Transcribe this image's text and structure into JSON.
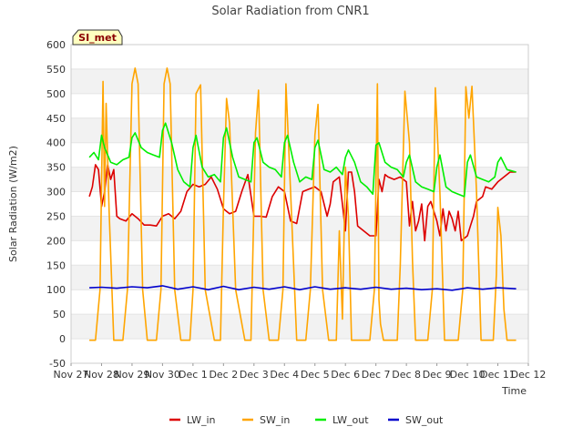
{
  "chart_data": {
    "type": "line",
    "title": "Solar Radiation from CNR1",
    "xlabel": "Time",
    "ylabel": "Solar Radiation (W/m2)",
    "station_badge": "SI_met",
    "ylim": [
      -50,
      600
    ],
    "xlim": [
      0,
      15
    ],
    "y_ticks": [
      -50,
      0,
      50,
      100,
      150,
      200,
      250,
      300,
      350,
      400,
      450,
      500,
      550,
      600
    ],
    "x_ticks": [
      {
        "pos": 0,
        "label": "Nov 27"
      },
      {
        "pos": 1,
        "label": "Nov 28"
      },
      {
        "pos": 2,
        "label": "Nov 29"
      },
      {
        "pos": 3,
        "label": "Nov 30"
      },
      {
        "pos": 4,
        "label": "Dec 1"
      },
      {
        "pos": 5,
        "label": "Dec 2"
      },
      {
        "pos": 6,
        "label": "Dec 3"
      },
      {
        "pos": 7,
        "label": "Dec 4"
      },
      {
        "pos": 8,
        "label": "Dec 5"
      },
      {
        "pos": 9,
        "label": "Dec 6"
      },
      {
        "pos": 10,
        "label": "Dec 7"
      },
      {
        "pos": 11,
        "label": "Dec 8"
      },
      {
        "pos": 12,
        "label": "Dec 9"
      },
      {
        "pos": 13,
        "label": "Dec 10"
      },
      {
        "pos": 14,
        "label": "Dec 11"
      },
      {
        "pos": 15,
        "label": "Dec 12"
      }
    ],
    "grid": "horizontal bands",
    "legend_position": "bottom",
    "series": [
      {
        "name": "LW_in",
        "color": "#dd0000",
        "x": [
          0.6,
          0.7,
          0.8,
          0.9,
          1.0,
          1.1,
          1.2,
          1.3,
          1.4,
          1.5,
          1.6,
          1.8,
          2.0,
          2.2,
          2.4,
          2.6,
          2.8,
          3.0,
          3.2,
          3.4,
          3.6,
          3.8,
          4.0,
          4.2,
          4.4,
          4.6,
          4.8,
          5.0,
          5.2,
          5.4,
          5.6,
          5.8,
          6.0,
          6.2,
          6.4,
          6.6,
          6.8,
          7.0,
          7.2,
          7.4,
          7.6,
          7.8,
          8.0,
          8.2,
          8.4,
          8.5,
          8.6,
          8.8,
          9.0,
          9.1,
          9.2,
          9.3,
          9.4,
          9.6,
          9.8,
          10.0,
          10.1,
          10.2,
          10.3,
          10.4,
          10.6,
          10.8,
          11.0,
          11.1,
          11.2,
          11.3,
          11.4,
          11.5,
          11.6,
          11.7,
          11.8,
          12.0,
          12.1,
          12.2,
          12.3,
          12.4,
          12.5,
          12.6,
          12.7,
          12.8,
          12.9,
          13.0,
          13.1,
          13.2,
          13.3,
          13.5,
          13.6,
          13.8,
          14.0,
          14.2,
          14.4,
          14.6
        ],
        "y": [
          290,
          310,
          355,
          345,
          270,
          300,
          355,
          325,
          345,
          250,
          245,
          240,
          255,
          245,
          232,
          232,
          230,
          250,
          255,
          245,
          260,
          300,
          315,
          310,
          315,
          330,
          305,
          265,
          255,
          260,
          300,
          335,
          250,
          250,
          248,
          290,
          310,
          300,
          240,
          235,
          300,
          305,
          310,
          300,
          250,
          275,
          320,
          330,
          220,
          340,
          340,
          300,
          230,
          220,
          210,
          210,
          325,
          300,
          335,
          330,
          325,
          330,
          320,
          230,
          280,
          220,
          240,
          275,
          200,
          270,
          280,
          240,
          210,
          265,
          220,
          260,
          245,
          220,
          260,
          200,
          205,
          210,
          230,
          250,
          280,
          290,
          310,
          305,
          320,
          330,
          340,
          340
        ]
      },
      {
        "name": "SW_in",
        "color": "#ffa500",
        "x": [
          0.6,
          0.8,
          0.95,
          1.05,
          1.1,
          1.15,
          1.25,
          1.4,
          1.7,
          1.85,
          2.0,
          2.1,
          2.2,
          2.35,
          2.5,
          2.8,
          2.95,
          3.05,
          3.15,
          3.25,
          3.4,
          3.6,
          3.9,
          4.0,
          4.1,
          4.25,
          4.4,
          4.7,
          4.9,
          5.0,
          5.1,
          5.2,
          5.4,
          5.7,
          5.9,
          6.05,
          6.15,
          6.3,
          6.5,
          6.8,
          6.95,
          7.05,
          7.2,
          7.4,
          7.7,
          7.85,
          8.0,
          8.1,
          8.25,
          8.45,
          8.55,
          8.7,
          8.8,
          8.9,
          9.0,
          9.1,
          9.2,
          9.4,
          9.6,
          9.8,
          9.95,
          10.05,
          10.1,
          10.15,
          10.25,
          10.4,
          10.7,
          10.8,
          10.95,
          11.1,
          11.2,
          11.3,
          11.45,
          11.7,
          11.85,
          11.95,
          12.1,
          12.25,
          12.4,
          12.7,
          12.85,
          12.95,
          13.05,
          13.15,
          13.3,
          13.45,
          13.7,
          13.85,
          13.95,
          14.0,
          14.1,
          14.2,
          14.3,
          14.5,
          14.6
        ],
        "y": [
          -3,
          -3,
          100,
          525,
          270,
          480,
          260,
          -3,
          -3,
          100,
          520,
          552,
          520,
          100,
          -3,
          -3,
          100,
          520,
          552,
          520,
          100,
          -3,
          -3,
          100,
          500,
          518,
          100,
          -3,
          -3,
          270,
          490,
          440,
          100,
          -3,
          -3,
          420,
          507,
          100,
          -3,
          -3,
          100,
          520,
          300,
          -3,
          -3,
          100,
          415,
          478,
          100,
          -3,
          -3,
          -3,
          220,
          40,
          350,
          250,
          -3,
          -3,
          -3,
          -3,
          100,
          520,
          80,
          30,
          -3,
          -3,
          -3,
          150,
          505,
          400,
          160,
          -3,
          -3,
          -3,
          100,
          512,
          300,
          -3,
          -3,
          -3,
          100,
          514,
          450,
          515,
          300,
          -3,
          -3,
          -3,
          130,
          268,
          210,
          60,
          -3,
          -3,
          -3
        ]
      },
      {
        "name": "LW_out",
        "color": "#00ee00",
        "x": [
          0.6,
          0.75,
          0.9,
          1.0,
          1.1,
          1.3,
          1.5,
          1.7,
          1.9,
          2.0,
          2.1,
          2.3,
          2.5,
          2.7,
          2.9,
          3.0,
          3.1,
          3.3,
          3.5,
          3.7,
          3.9,
          4.0,
          4.1,
          4.3,
          4.5,
          4.7,
          4.9,
          5.0,
          5.1,
          5.3,
          5.5,
          5.7,
          5.9,
          6.0,
          6.1,
          6.3,
          6.5,
          6.7,
          6.9,
          7.0,
          7.1,
          7.3,
          7.5,
          7.7,
          7.9,
          8.0,
          8.1,
          8.3,
          8.5,
          8.7,
          8.9,
          9.0,
          9.1,
          9.3,
          9.5,
          9.7,
          9.9,
          10.0,
          10.1,
          10.3,
          10.5,
          10.7,
          10.9,
          11.0,
          11.1,
          11.3,
          11.5,
          11.7,
          11.9,
          12.0,
          12.1,
          12.3,
          12.5,
          12.7,
          12.9,
          13.0,
          13.1,
          13.3,
          13.5,
          13.7,
          13.9,
          14.0,
          14.1,
          14.3,
          14.6
        ],
        "y": [
          370,
          380,
          365,
          415,
          390,
          360,
          355,
          365,
          370,
          410,
          420,
          390,
          380,
          375,
          370,
          425,
          440,
          400,
          345,
          320,
          310,
          390,
          415,
          350,
          330,
          335,
          320,
          410,
          430,
          370,
          330,
          325,
          320,
          400,
          410,
          360,
          350,
          345,
          330,
          400,
          415,
          360,
          320,
          330,
          325,
          390,
          405,
          345,
          340,
          350,
          335,
          370,
          385,
          360,
          320,
          310,
          295,
          395,
          400,
          360,
          350,
          345,
          330,
          360,
          375,
          320,
          310,
          305,
          300,
          350,
          375,
          310,
          300,
          295,
          290,
          360,
          375,
          330,
          325,
          320,
          330,
          360,
          370,
          345,
          340
        ]
      },
      {
        "name": "SW_out",
        "color": "#0000cc",
        "x": [
          0.6,
          1.0,
          1.5,
          2.0,
          2.5,
          3.0,
          3.5,
          4.0,
          4.5,
          5.0,
          5.5,
          6.0,
          6.5,
          7.0,
          7.5,
          8.0,
          8.5,
          9.0,
          9.5,
          10.0,
          10.5,
          11.0,
          11.5,
          12.0,
          12.5,
          13.0,
          13.5,
          14.0,
          14.6
        ],
        "y": [
          104,
          105,
          103,
          106,
          104,
          108,
          101,
          106,
          100,
          107,
          100,
          105,
          101,
          106,
          100,
          106,
          101,
          104,
          101,
          105,
          101,
          103,
          100,
          102,
          99,
          104,
          101,
          104,
          102
        ]
      }
    ]
  }
}
